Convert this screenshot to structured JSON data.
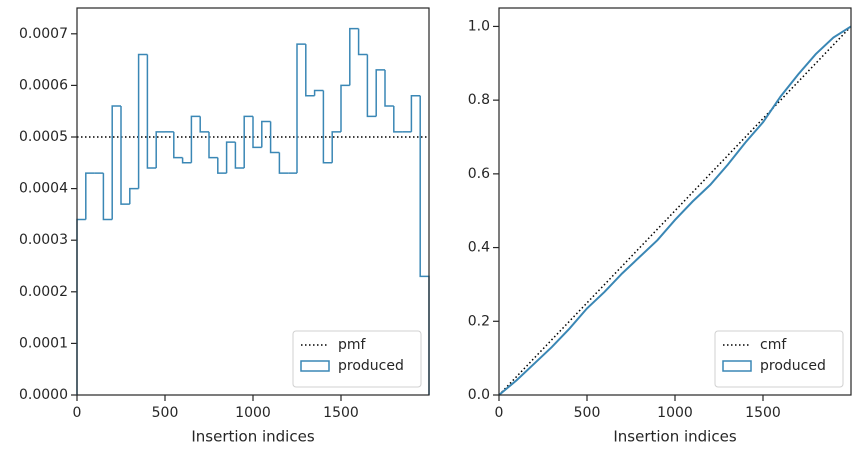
{
  "chart_data": [
    {
      "type": "histogram",
      "xlabel": "Insertion indices",
      "bins": [
        0,
        50,
        100,
        150,
        200,
        250,
        300,
        350,
        400,
        450,
        500,
        550,
        600,
        650,
        700,
        750,
        800,
        850,
        900,
        950,
        1000,
        1050,
        1100,
        1150,
        1200,
        1250,
        1300,
        1350,
        1400,
        1450,
        1500,
        1550,
        1600,
        1650,
        1700,
        1750,
        1800,
        1850,
        1900,
        1950,
        2000
      ],
      "series": [
        {
          "name": "produced",
          "color": "#3a87b5",
          "values": [
            0.00034,
            0.00043,
            0.00043,
            0.00034,
            0.00056,
            0.00037,
            0.0004,
            0.00066,
            0.00044,
            0.00051,
            0.00051,
            0.00046,
            0.00045,
            0.00054,
            0.00051,
            0.00046,
            0.00043,
            0.00049,
            0.00044,
            0.00054,
            0.00048,
            0.00053,
            0.00047,
            0.00043,
            0.00043,
            0.00068,
            0.00058,
            0.00059,
            0.00045,
            0.00051,
            0.0006,
            0.00071,
            0.00066,
            0.00054,
            0.00063,
            0.00056,
            0.00051,
            0.00051,
            0.00058,
            0.00023
          ]
        }
      ],
      "reference_line": {
        "name": "pmf",
        "value": 0.0005,
        "color": "#000000"
      },
      "xlim": [
        0,
        2000
      ],
      "xticks": [
        0,
        500,
        1000,
        1500
      ],
      "ylim": [
        0,
        0.00075
      ],
      "yticks": [
        {
          "value": 0,
          "label": "0.0000"
        },
        {
          "value": 0.0001,
          "label": "0.0001"
        },
        {
          "value": 0.0002,
          "label": "0.0002"
        },
        {
          "value": 0.0003,
          "label": "0.0003"
        },
        {
          "value": 0.0004,
          "label": "0.0004"
        },
        {
          "value": 0.0005,
          "label": "0.0005"
        },
        {
          "value": 0.0006,
          "label": "0.0006"
        },
        {
          "value": 0.0007,
          "label": "0.0007"
        }
      ],
      "legend": "lower right"
    },
    {
      "type": "line",
      "xlabel": "Insertion indices",
      "series": [
        {
          "name": "cmf",
          "color": "#000000",
          "style": "dotted",
          "x": [
            0,
            2000
          ],
          "values": [
            0,
            1
          ]
        },
        {
          "name": "produced",
          "color": "#3a87b5",
          "style": "solid",
          "x": [
            0,
            100,
            200,
            300,
            400,
            500,
            600,
            700,
            800,
            900,
            1000,
            1100,
            1200,
            1300,
            1400,
            1500,
            1600,
            1700,
            1800,
            1900,
            2000
          ],
          "values": [
            0,
            0.04,
            0.085,
            0.13,
            0.18,
            0.235,
            0.28,
            0.33,
            0.375,
            0.42,
            0.475,
            0.525,
            0.57,
            0.625,
            0.685,
            0.74,
            0.81,
            0.87,
            0.925,
            0.97,
            1.0
          ]
        }
      ],
      "xlim": [
        0,
        2000
      ],
      "xticks": [
        0,
        500,
        1000,
        1500
      ],
      "ylim": [
        0,
        1.05
      ],
      "yticks": [
        {
          "value": 0,
          "label": "0.0"
        },
        0.2,
        0.4,
        0.6,
        0.8,
        {
          "value": 1,
          "label": "1.0"
        }
      ],
      "legend": "lower right"
    }
  ]
}
